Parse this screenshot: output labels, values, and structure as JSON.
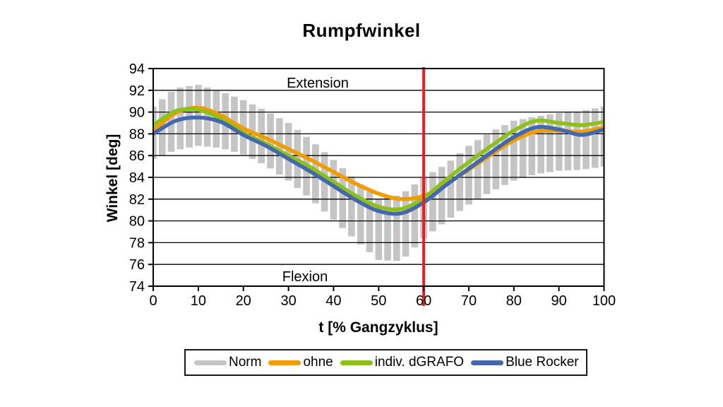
{
  "title": "Rumpfwinkel",
  "annotations": {
    "upper_region": "Extension",
    "lower_region": "Flexion"
  },
  "axes": {
    "y_title": "Winkel [deg]",
    "x_title": "t [% Gangzyklus]",
    "y_ticks": [
      94,
      92,
      90,
      88,
      86,
      84,
      82,
      80,
      78,
      76,
      74
    ],
    "x_ticks": [
      0,
      10,
      20,
      30,
      40,
      50,
      60,
      70,
      80,
      90,
      100
    ]
  },
  "colors": {
    "norm_band": "#c5c5c5",
    "ohne": "#f39c00",
    "indiv_dgrafo": "#8ec01c",
    "blue_rocker": "#4468ae",
    "event_line": "#ed1c24",
    "grid": "#000000",
    "frame": "#000000"
  },
  "legend": {
    "items": [
      {
        "label": "Norm",
        "color": "#c5c5c5"
      },
      {
        "label": "ohne",
        "color": "#f39c00"
      },
      {
        "label": "indiv. dGRAFO",
        "color": "#8ec01c"
      },
      {
        "label": "Blue Rocker",
        "color": "#4468ae"
      }
    ]
  },
  "chart_data": {
    "type": "line",
    "title": "Rumpfwinkel",
    "xlabel": "t [% Gangzyklus]",
    "ylabel": "Winkel [deg]",
    "xlim": [
      0,
      100
    ],
    "ylim": [
      74,
      94
    ],
    "grid": "horizontal",
    "legend_position": "bottom",
    "x": [
      0,
      5,
      10,
      15,
      20,
      25,
      30,
      35,
      40,
      45,
      50,
      55,
      60,
      65,
      70,
      75,
      80,
      85,
      90,
      95,
      100
    ],
    "band": {
      "name": "Norm",
      "style": "gray vertical bars",
      "upper": [
        90.5,
        92.2,
        92.5,
        91.9,
        91.1,
        90.1,
        89.0,
        87.4,
        85.6,
        83.7,
        82.0,
        82.4,
        84.0,
        85.2,
        86.9,
        88.2,
        89.2,
        89.6,
        89.9,
        90.1,
        90.5
      ],
      "lower": [
        85.7,
        86.5,
        86.9,
        86.7,
        86.1,
        85.1,
        83.7,
        82.0,
        80.1,
        78.2,
        76.4,
        76.3,
        78.4,
        80.0,
        81.5,
        82.7,
        83.7,
        84.3,
        84.6,
        84.7,
        85.0
      ]
    },
    "series": [
      {
        "name": "ohne",
        "color": "#f39c00",
        "values": [
          88.3,
          89.9,
          90.4,
          89.7,
          88.5,
          87.6,
          86.6,
          85.6,
          84.5,
          83.4,
          82.5,
          82.0,
          82.3,
          83.4,
          84.7,
          86.1,
          87.4,
          88.2,
          88.3,
          88.2,
          88.6
        ]
      },
      {
        "name": "indiv. dGRAFO",
        "color": "#8ec01c",
        "values": [
          88.8,
          90.1,
          90.2,
          89.4,
          88.1,
          87.1,
          86.0,
          84.9,
          83.6,
          82.3,
          81.3,
          81.1,
          82.1,
          83.8,
          85.4,
          86.9,
          88.3,
          89.2,
          89.0,
          88.8,
          89.1
        ]
      },
      {
        "name": "Blue Rocker",
        "color": "#4468ae",
        "values": [
          88.0,
          89.2,
          89.5,
          89.1,
          87.9,
          86.9,
          85.7,
          84.5,
          83.2,
          81.9,
          80.9,
          80.7,
          81.7,
          83.3,
          84.8,
          86.3,
          87.7,
          88.6,
          88.4,
          87.9,
          88.4
        ]
      }
    ],
    "vline": {
      "x": 60,
      "color": "#ed1c24",
      "label": ""
    }
  }
}
